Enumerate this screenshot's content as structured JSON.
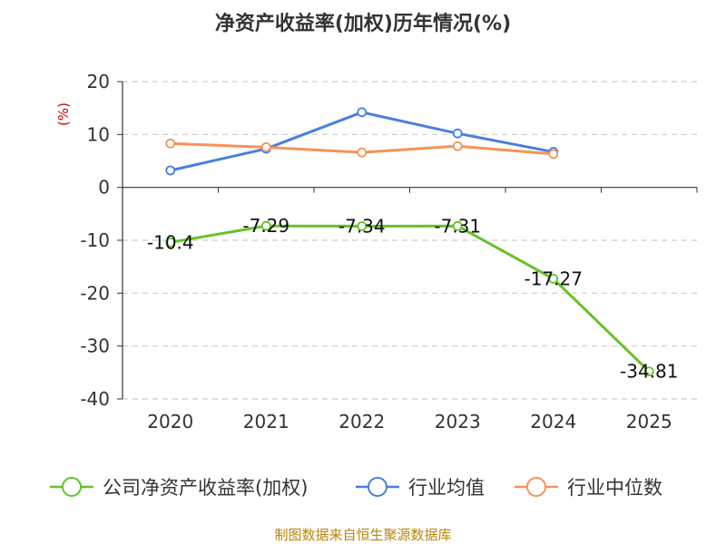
{
  "chart_data": {
    "type": "line",
    "title": "净资产收益率(加权)历年情况(%)",
    "ylabel": "(%)",
    "xlabel": "",
    "categories": [
      "2020",
      "2021",
      "2022",
      "2023",
      "2024",
      "2025"
    ],
    "ylim": [
      -40,
      20
    ],
    "yticks": [
      20,
      10,
      0,
      -10,
      -20,
      -30,
      -40
    ],
    "grid": true,
    "legend_position": "bottom",
    "series": [
      {
        "name": "公司净资产收益率(加权)",
        "color": "#66c22a",
        "values": [
          -10.4,
          -7.29,
          -7.34,
          -7.31,
          -17.27,
          -34.81
        ],
        "labels": [
          "-10.4",
          "-7.29",
          "-7.34",
          "-7.31",
          "-17.27",
          "-34.81"
        ]
      },
      {
        "name": "行业均值",
        "color": "#4a7fdc",
        "values": [
          3.2,
          7.3,
          14.2,
          10.2,
          6.7,
          null
        ]
      },
      {
        "name": "行业中位数",
        "color": "#f7925b",
        "values": [
          8.3,
          7.6,
          6.6,
          7.8,
          6.3,
          null
        ]
      }
    ],
    "source": "制图数据来自恒生聚源数据库"
  }
}
